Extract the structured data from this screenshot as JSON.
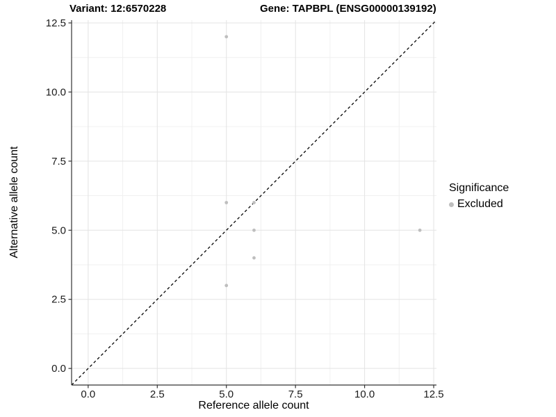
{
  "titles": {
    "variant": "Variant: 12:6570228",
    "gene": "Gene: TAPBPL (ENSG00000139192)"
  },
  "legend": {
    "title": "Significance",
    "items": [
      {
        "label": "Excluded",
        "color": "#bebebe"
      }
    ]
  },
  "chart_data": {
    "type": "scatter",
    "title": "Variant: 12:6570228  |  Gene: TAPBPL (ENSG00000139192)",
    "xlabel": "Reference allele count",
    "ylabel": "Alternative allele count",
    "xlim": [
      -0.6,
      12.6
    ],
    "ylim": [
      -0.6,
      12.6
    ],
    "x_ticks": [
      0.0,
      2.5,
      5.0,
      7.5,
      10.0,
      12.5
    ],
    "y_ticks": [
      0.0,
      2.5,
      5.0,
      7.5,
      10.0,
      12.5
    ],
    "x_tick_labels": [
      "0.0",
      "2.5",
      "5.0",
      "7.5",
      "10.0",
      "12.5"
    ],
    "y_tick_labels": [
      "0.0",
      "2.5",
      "5.0",
      "7.5",
      "10.0",
      "12.5"
    ],
    "minor_ticks": [
      1.25,
      3.75,
      6.25,
      8.75,
      11.25
    ],
    "grid": true,
    "legend_position": "right",
    "reference_line": {
      "type": "identity",
      "style": "dashed",
      "color": "#000000"
    },
    "series": [
      {
        "name": "Excluded",
        "color": "#bebebe",
        "points": [
          {
            "x": 5,
            "y": 12
          },
          {
            "x": 5,
            "y": 6
          },
          {
            "x": 6,
            "y": 6
          },
          {
            "x": 6,
            "y": 5
          },
          {
            "x": 6,
            "y": 4
          },
          {
            "x": 5,
            "y": 3
          },
          {
            "x": 12,
            "y": 5
          }
        ]
      }
    ],
    "colors": {
      "grid_major": "#e3e3e3",
      "grid_minor": "#f0f0f0",
      "axis_line": "#333333",
      "tick_mark": "#333333",
      "panel_background": "#ffffff"
    }
  }
}
